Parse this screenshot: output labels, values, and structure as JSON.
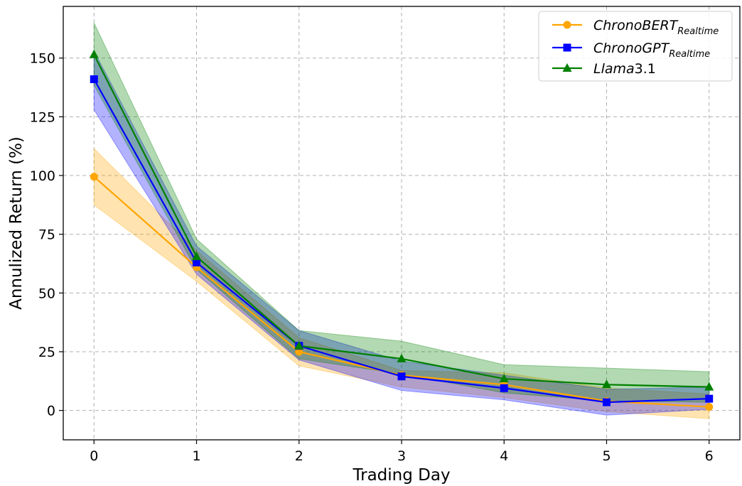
{
  "chart_data": {
    "type": "line",
    "title": "",
    "xlabel": "Trading Day",
    "ylabel": "Annulized Return (%)",
    "x": [
      0,
      1,
      2,
      3,
      4,
      5,
      6
    ],
    "xlim": [
      -0.3,
      6.3
    ],
    "ylim": [
      -12.5,
      172
    ],
    "xticks": [
      0,
      1,
      2,
      3,
      4,
      5,
      6
    ],
    "yticks": [
      0,
      25,
      50,
      75,
      100,
      125,
      150
    ],
    "grid": true,
    "legend_position": "top-right",
    "series": [
      {
        "name": "ChronoBERT",
        "name_subscript": "Realtime",
        "color": "#ffa500",
        "marker": "circle",
        "values": [
          99.5,
          61.0,
          25.0,
          15.0,
          11.0,
          4.0,
          1.5
        ],
        "lower": [
          87.5,
          55.0,
          19.0,
          10.0,
          5.5,
          -0.5,
          -3.5
        ],
        "upper": [
          111.5,
          68.0,
          31.0,
          17.0,
          16.0,
          9.5,
          7.0
        ]
      },
      {
        "name": "ChronoGPT",
        "name_subscript": "Realtime",
        "color": "#0000ff",
        "marker": "square",
        "values": [
          141.0,
          63.0,
          27.5,
          14.5,
          9.5,
          3.5,
          5.0
        ],
        "lower": [
          128.0,
          58.0,
          21.5,
          8.5,
          4.5,
          -2.0,
          0.5
        ],
        "upper": [
          153.0,
          70.0,
          34.0,
          21.0,
          15.0,
          9.0,
          10.0
        ]
      },
      {
        "name": "Llama",
        "name_suffix": "3.1",
        "color": "#008000",
        "marker": "triangle",
        "values": [
          151.5,
          65.5,
          27.5,
          22.0,
          13.5,
          11.0,
          10.0
        ],
        "lower": [
          138.5,
          60.0,
          22.0,
          15.5,
          7.5,
          4.0,
          3.5
        ],
        "upper": [
          165.0,
          73.0,
          34.0,
          29.5,
          19.5,
          18.0,
          16.5
        ]
      }
    ]
  }
}
